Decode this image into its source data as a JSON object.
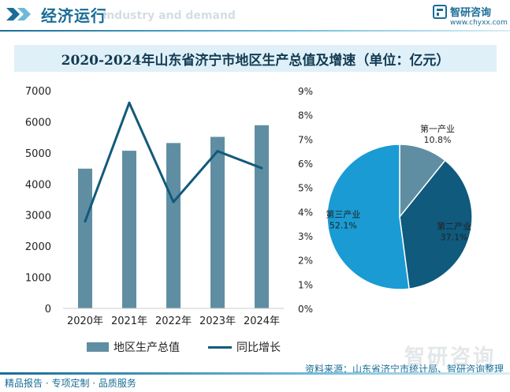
{
  "header": {
    "section_title": "经济运行",
    "ghost_text": "Industry and demand",
    "brand_name": "智研咨询",
    "brand_url": "www.chyxx.com"
  },
  "title": "2020-2024年山东省济宁市地区生产总值及增速（单位：亿元）",
  "chart_data": [
    {
      "type": "bar",
      "categories": [
        "2020年",
        "2021年",
        "2022年",
        "2023年",
        "2024年"
      ],
      "series": [
        {
          "name": "地区生产总值",
          "kind": "bar",
          "axis": "left",
          "values": [
            4494,
            5070,
            5317,
            5516,
            5890
          ]
        },
        {
          "name": "同比增长",
          "kind": "line",
          "axis": "right",
          "unit": "%",
          "values": [
            3.6,
            8.5,
            4.4,
            6.5,
            5.8
          ]
        }
      ],
      "ylim": [
        0,
        7000
      ],
      "yticks": [
        0,
        1000,
        2000,
        3000,
        4000,
        5000,
        6000,
        7000
      ],
      "y2lim": [
        0,
        9
      ],
      "y2ticks": [
        "0%",
        "1%",
        "2%",
        "3%",
        "4%",
        "5%",
        "6%",
        "7%",
        "8%",
        "9%"
      ],
      "legend_position": "bottom",
      "colors": {
        "bar": "#5f8ea2",
        "line": "#125a7c"
      }
    },
    {
      "type": "pie",
      "slices": [
        {
          "label": "第一产业",
          "value": 10.8,
          "value_label": "10.8%",
          "color": "#5f8ea2",
          "text_color": "#222222"
        },
        {
          "label": "第二产业",
          "value": 37.1,
          "value_label": "37.1%",
          "color": "#0f5a7d",
          "text_color": "#222222"
        },
        {
          "label": "第三产业",
          "value": 52.1,
          "value_label": "52.1%",
          "color": "#1a9bd3",
          "text_color": "#222222"
        }
      ]
    }
  ],
  "legend": {
    "bar_label": "地区生产总值",
    "line_label": "同比增长"
  },
  "footer": {
    "left": "精品报告 · 专项定制 · 品质服务",
    "source": "资料来源：山东省济宁市统计局、智研咨询整理"
  },
  "watermark": "智研咨询"
}
